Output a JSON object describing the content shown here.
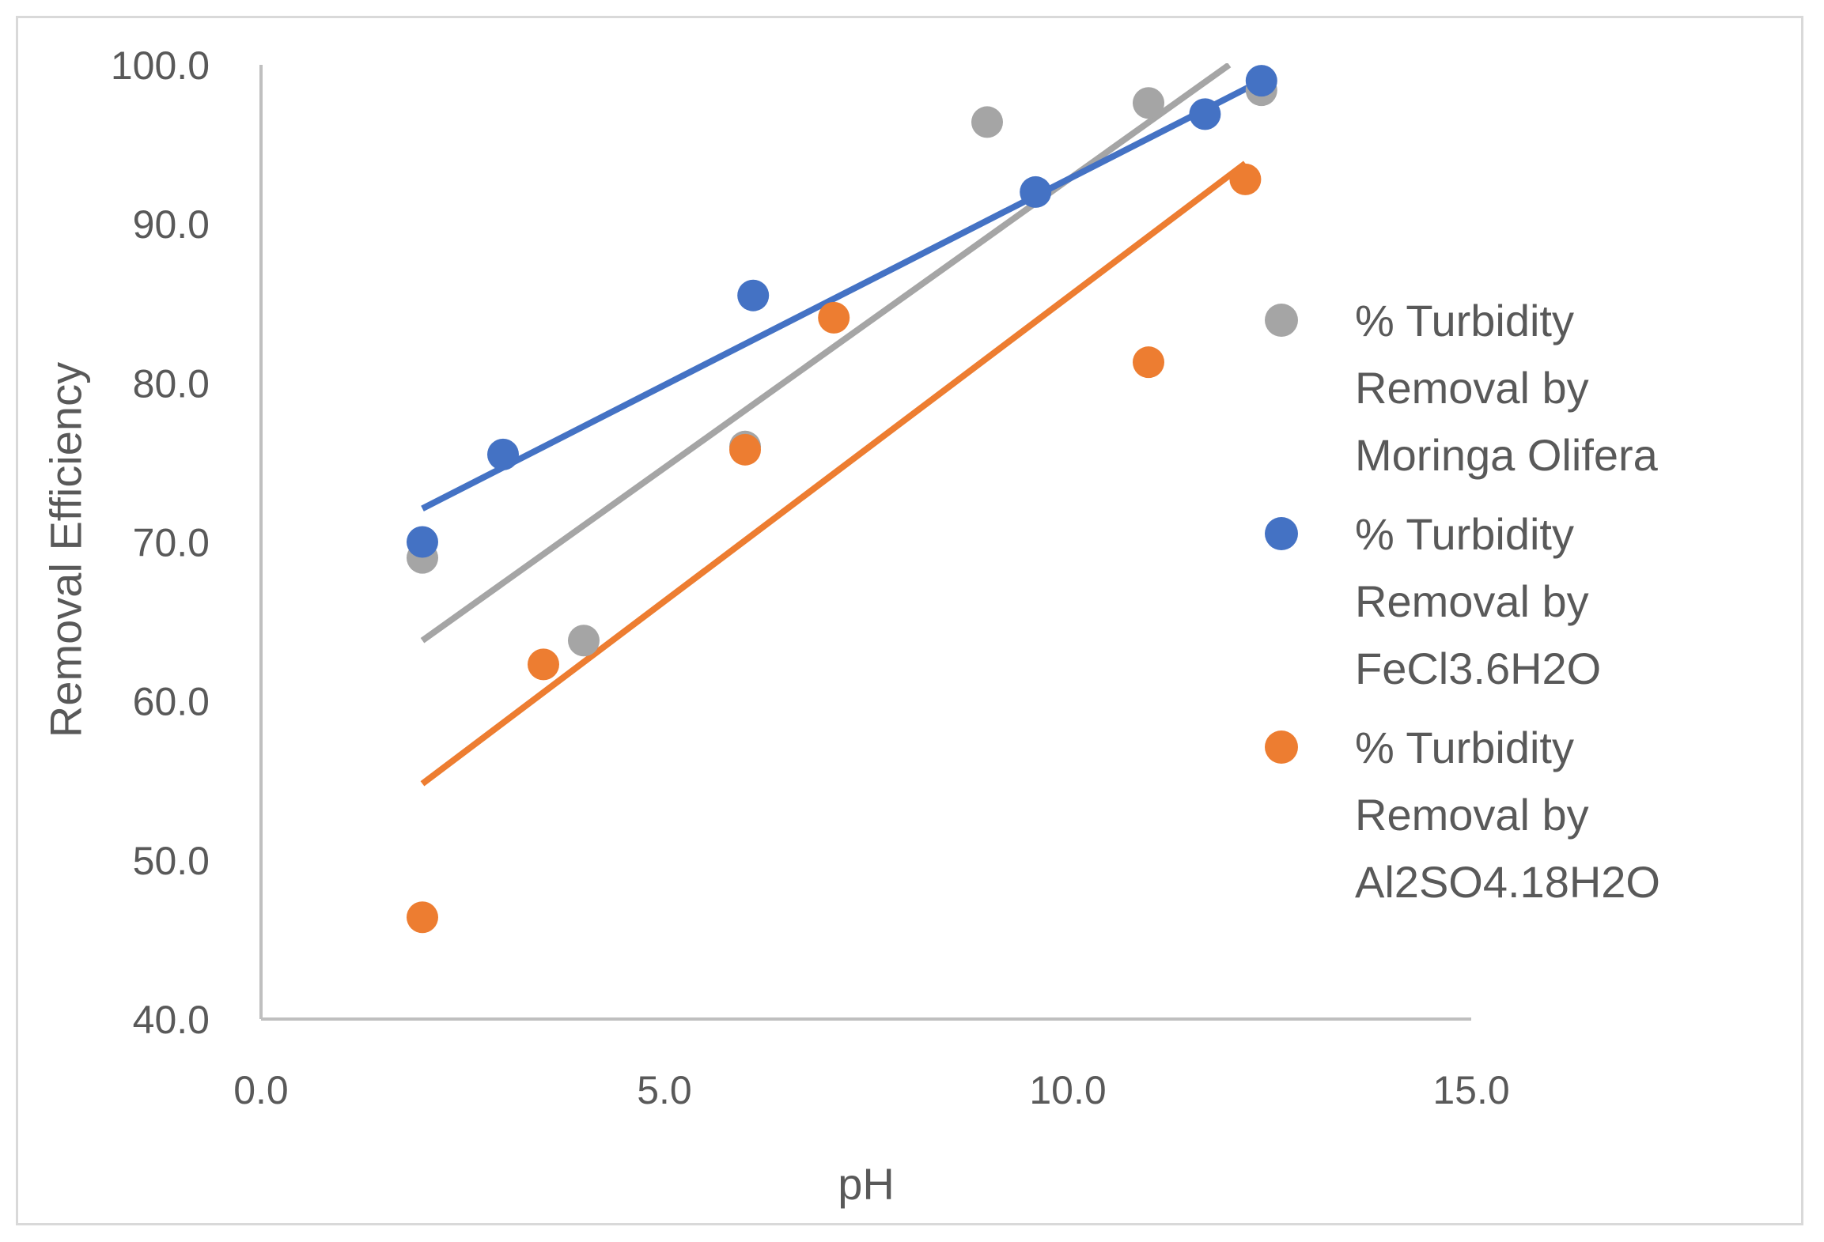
{
  "chart_data": {
    "type": "scatter",
    "xlabel": "pH",
    "ylabel": "Removal Efficiency",
    "xlim": [
      0,
      15
    ],
    "ylim": [
      40,
      100
    ],
    "x_ticks": [
      "0.0",
      "5.0",
      "10.0",
      "15.0"
    ],
    "y_ticks": [
      "40.0",
      "50.0",
      "60.0",
      "70.0",
      "80.0",
      "90.0",
      "100.0"
    ],
    "grid": false,
    "legend_position": "right",
    "series": [
      {
        "name": "% Turbidity Removal by Moringa Olifera",
        "legend_lines": [
          "% Turbidity",
          "Removal by",
          "Moringa Olifera"
        ],
        "color": "#a5a5a5",
        "points": [
          [
            2.0,
            69.0
          ],
          [
            4.0,
            63.8
          ],
          [
            6.0,
            76.0
          ],
          [
            9.0,
            96.4
          ],
          [
            11.0,
            97.6
          ],
          [
            12.4,
            98.4
          ]
        ],
        "trendline": [
          [
            2.0,
            63.8
          ],
          [
            12.0,
            100.0
          ]
        ]
      },
      {
        "name": "% Turbidity Removal by FeCl3.6H2O",
        "legend_lines": [
          "% Turbidity",
          "Removal by",
          "FeCl3.6H2O"
        ],
        "color": "#4472c4",
        "points": [
          [
            2.0,
            70.0
          ],
          [
            3.0,
            75.5
          ],
          [
            6.1,
            85.5
          ],
          [
            9.6,
            92.0
          ],
          [
            11.7,
            96.9
          ],
          [
            12.4,
            99.0
          ]
        ],
        "trendline": [
          [
            2.0,
            72.1
          ],
          [
            12.4,
            99.0
          ]
        ]
      },
      {
        "name": "% Turbidity Removal by Al2SO4.18H2O",
        "legend_lines": [
          "% Turbidity",
          "Removal by",
          "Al2SO4.18H2O"
        ],
        "color": "#ed7d31",
        "points": [
          [
            2.0,
            46.4
          ],
          [
            3.5,
            62.3
          ],
          [
            6.0,
            75.8
          ],
          [
            7.1,
            84.1
          ],
          [
            11.0,
            81.3
          ],
          [
            12.2,
            92.8
          ]
        ],
        "trendline": [
          [
            2.0,
            54.8
          ],
          [
            12.2,
            93.8
          ]
        ]
      }
    ]
  }
}
